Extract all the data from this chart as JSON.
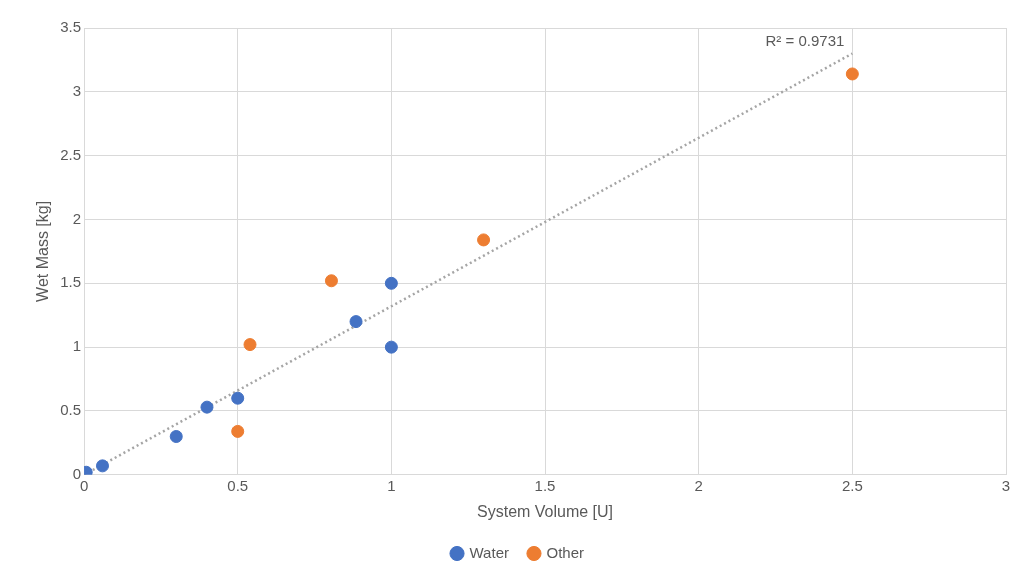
{
  "chart_data": {
    "type": "scatter",
    "xlabel": "System Volume [U]",
    "ylabel": "Wet Mass [kg]",
    "xlim": [
      0,
      3
    ],
    "xticks": [
      0,
      0.5,
      1,
      1.5,
      2,
      2.5,
      3
    ],
    "ylim": [
      0,
      3.5
    ],
    "yticks": [
      0,
      0.5,
      1,
      1.5,
      2,
      2.5,
      3,
      3.5
    ],
    "grid": true,
    "legend": "bottom",
    "marker": "circle",
    "series": [
      {
        "name": "Water",
        "color": "#4472c4",
        "x": [
          0.007,
          0.06,
          0.3,
          0.4,
          0.5,
          0.885,
          1.0,
          1.0
        ],
        "values": [
          0.02,
          0.07,
          0.3,
          0.53,
          0.6,
          1.2,
          1.5,
          1.0
        ]
      },
      {
        "name": "Other",
        "color": "#ed7d31",
        "x": [
          0.5,
          0.54,
          0.805,
          1.3,
          2.5
        ],
        "values": [
          0.34,
          1.02,
          1.52,
          1.84,
          3.14
        ]
      },
      {
        "type": "line",
        "color": "#a5a5a5",
        "line_style": "dotted",
        "marker": "none",
        "x": [
          0,
          2.5
        ],
        "values": [
          0,
          3.3
        ]
      }
    ],
    "annotations": [
      {
        "text": "R² = 0.9731",
        "x": 2.5,
        "y": 3.3
      }
    ]
  }
}
